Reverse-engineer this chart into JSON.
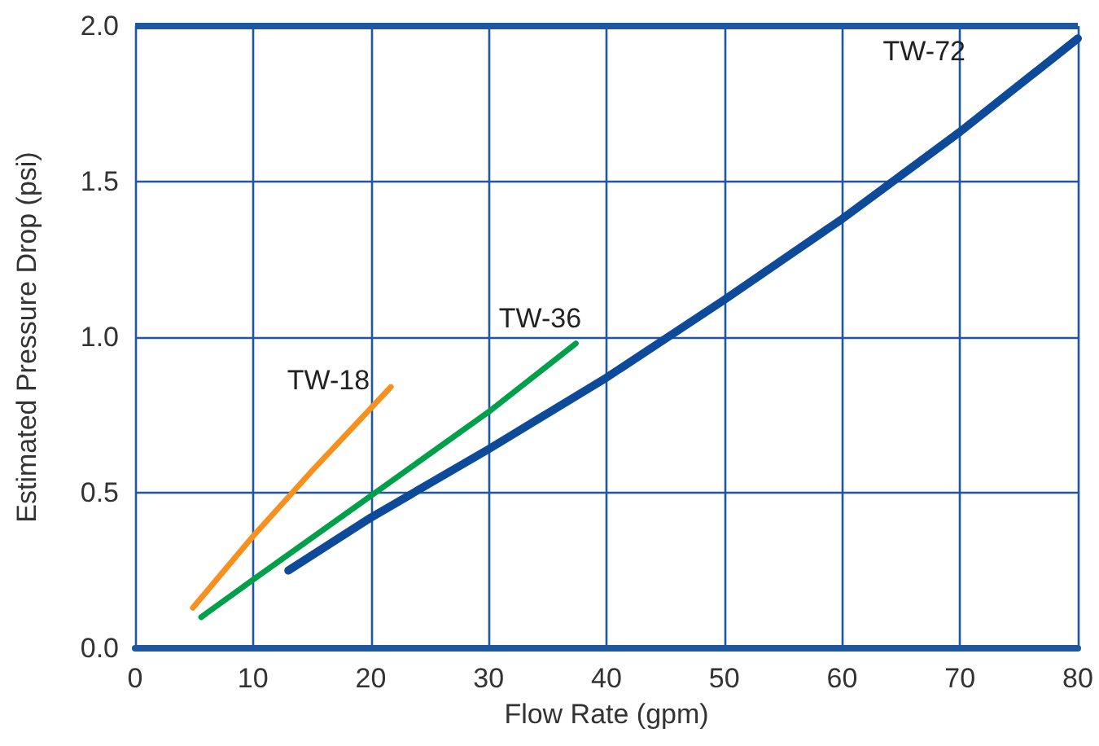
{
  "chart_data": {
    "type": "line",
    "xlabel": "Flow Rate (gpm)",
    "ylabel": "Estimated Pressure Drop (psi)",
    "xlim": [
      0,
      80
    ],
    "xticks": [
      0,
      10,
      20,
      30,
      40,
      50,
      60,
      70,
      80
    ],
    "ylim": [
      0,
      2
    ],
    "yticks": [
      {
        "value": 0,
        "label": "0.0"
      },
      {
        "value": 0.5,
        "label": "0.5"
      },
      {
        "value": 1,
        "label": "1.0"
      },
      {
        "value": 1.5,
        "label": "1.5"
      },
      {
        "value": 2,
        "label": "2.0"
      }
    ],
    "grid": true,
    "legend": false,
    "marker": "none",
    "line_style": "solid",
    "series": [
      {
        "name": "TW-18",
        "color": "#f7901e",
        "x": [
          4.9,
          10,
          15,
          21.7
        ],
        "values": [
          0.13,
          0.36,
          0.57,
          0.84
        ]
      },
      {
        "name": "TW-36",
        "color": "#00a04b",
        "x": [
          5.6,
          10,
          20,
          30,
          37.4
        ],
        "values": [
          0.1,
          0.22,
          0.49,
          0.76,
          0.98
        ]
      },
      {
        "name": "TW-72",
        "color": "#0d4a9a",
        "x": [
          13,
          20,
          30,
          40,
          50,
          60,
          70,
          80
        ],
        "values": [
          0.25,
          0.42,
          0.64,
          0.87,
          1.12,
          1.38,
          1.66,
          1.96
        ]
      }
    ]
  }
}
